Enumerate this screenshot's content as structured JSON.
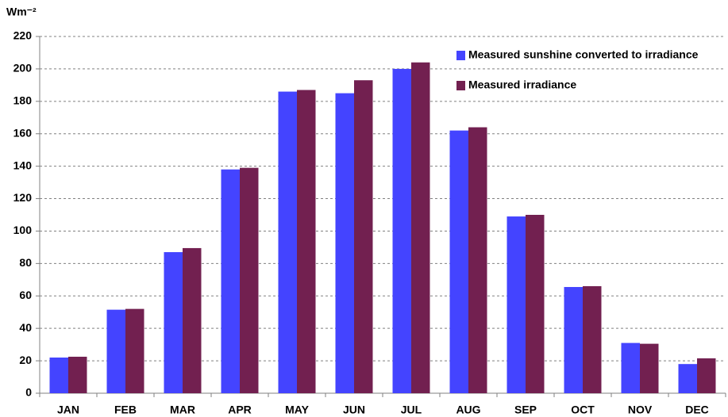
{
  "chart_data": {
    "type": "bar",
    "ylabel": "Wm⁻²",
    "categories": [
      "JAN",
      "FEB",
      "MAR",
      "APR",
      "MAY",
      "JUN",
      "JUL",
      "AUG",
      "SEP",
      "OCT",
      "NOV",
      "DEC"
    ],
    "series": [
      {
        "name": "Measured sunshine converted to irradiance",
        "color": "#4444ff",
        "values": [
          22,
          51.5,
          87,
          138,
          186,
          185,
          200,
          162,
          109,
          65.5,
          31,
          18
        ]
      },
      {
        "name": "Measured irradiance",
        "color": "#722050",
        "values": [
          22.5,
          52,
          89.5,
          139,
          187,
          193,
          204,
          164,
          110,
          66,
          30.5,
          21.5
        ]
      }
    ],
    "ylim": [
      0,
      220
    ],
    "yticks": [
      0,
      20,
      40,
      60,
      80,
      100,
      120,
      140,
      160,
      180,
      200,
      220
    ],
    "grid": true,
    "legend": "upper right"
  }
}
